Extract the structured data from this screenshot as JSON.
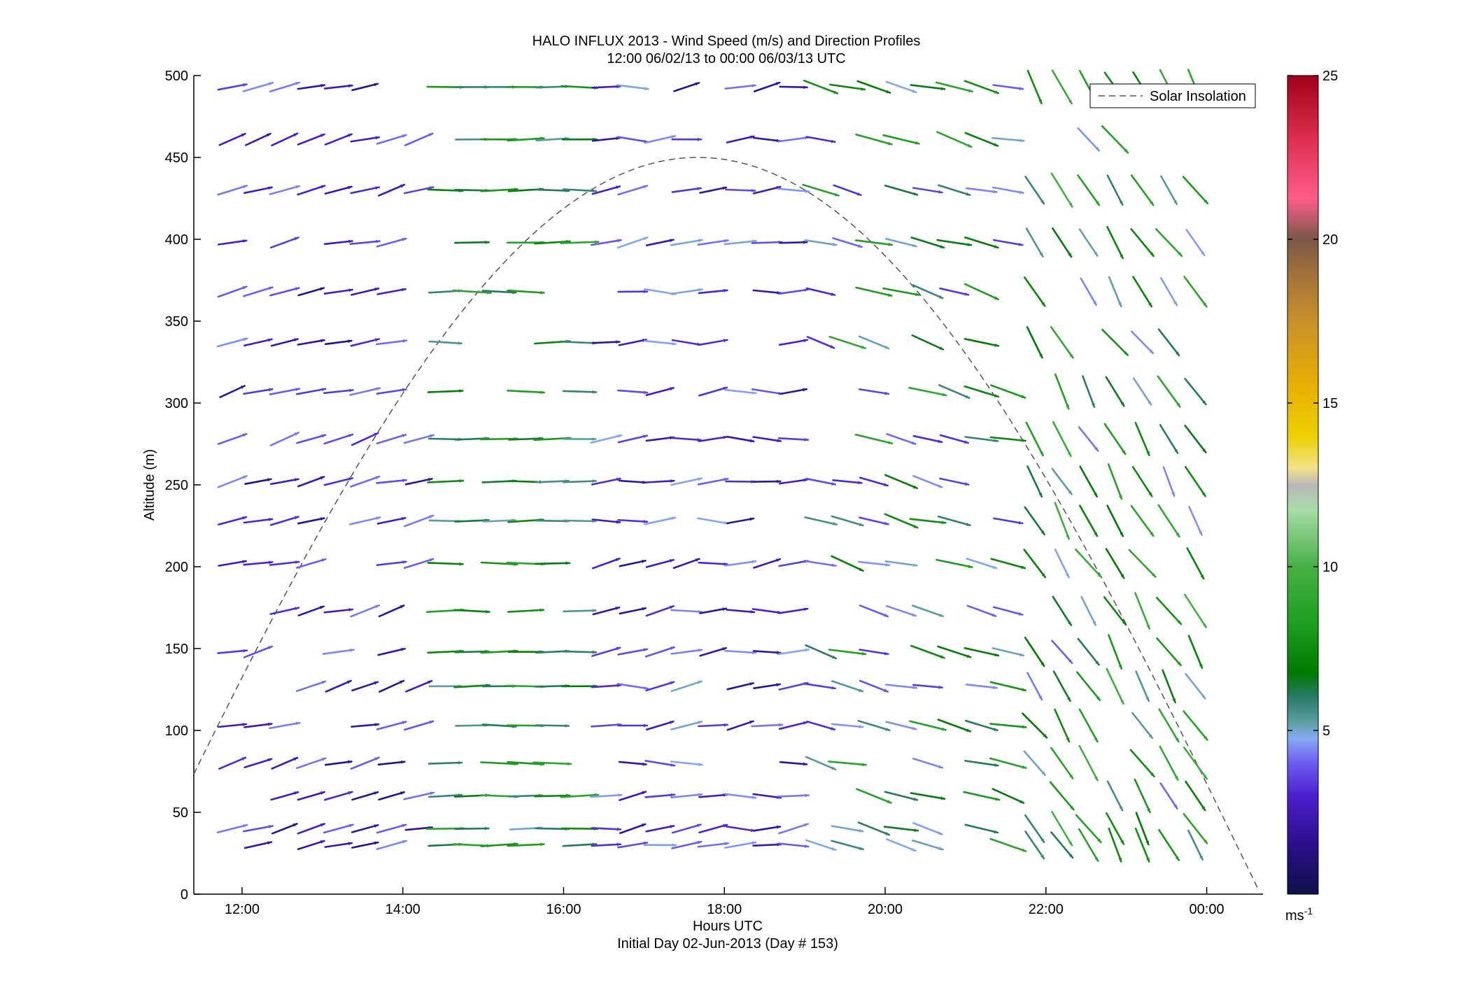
{
  "chart_data": {
    "type": "quiver",
    "title_line1": "HALO INFLUX 2013 - Wind Speed (m/s) and Direction Profiles",
    "title_line2": "12:00 06/02/13 to 00:00 06/03/13  UTC",
    "xlabel": "Hours UTC",
    "xlabel_sub": "Initial Day 02-Jun-2013 (Day # 153)",
    "ylabel": "Altitude (m)",
    "xlim": [
      11.4,
      24.7
    ],
    "ylim": [
      0,
      500
    ],
    "x_ticks": [
      12,
      14,
      16,
      18,
      20,
      22,
      24
    ],
    "x_tick_labels": [
      "12:00",
      "14:00",
      "16:00",
      "18:00",
      "20:00",
      "22:00",
      "00:00"
    ],
    "y_ticks": [
      0,
      50,
      100,
      150,
      200,
      250,
      300,
      350,
      400,
      450,
      500
    ],
    "y_tick_labels": [
      "0",
      "50",
      "100",
      "150",
      "200",
      "250",
      "300",
      "350",
      "400",
      "450",
      "500"
    ],
    "colorbar": {
      "range": [
        0,
        25
      ],
      "ticks": [
        5,
        10,
        15,
        20,
        25
      ],
      "tick_labels": [
        "5",
        "10",
        "15",
        "20",
        "25"
      ],
      "unit_base": "ms",
      "unit_exp": "-1"
    },
    "legend": {
      "entry": "Solar Insolation",
      "placement": "top-right",
      "style": "dashed"
    },
    "solar_curve": {
      "peak_x": 17.67,
      "peak_y": 450,
      "half_width_hours": 7.0
    },
    "x_times": [
      11.88,
      12.2,
      12.53,
      12.86,
      13.2,
      13.53,
      13.86,
      14.2,
      14.53,
      14.86,
      15.2,
      15.53,
      15.86,
      16.2,
      16.53,
      16.86,
      17.2,
      17.53,
      17.86,
      18.2,
      18.53,
      18.86,
      19.2,
      19.53,
      19.86,
      20.2,
      20.53,
      20.86,
      21.2,
      21.53,
      21.86,
      22.2,
      22.53,
      22.86,
      23.2,
      23.53,
      23.86
    ],
    "altitudes": [
      30,
      40,
      60,
      80,
      103,
      127,
      148,
      173,
      202,
      228,
      252,
      278,
      307,
      337,
      368,
      398,
      430,
      461,
      493
    ]
  },
  "colors": {
    "axis": "#000000",
    "curve": "#555555"
  }
}
